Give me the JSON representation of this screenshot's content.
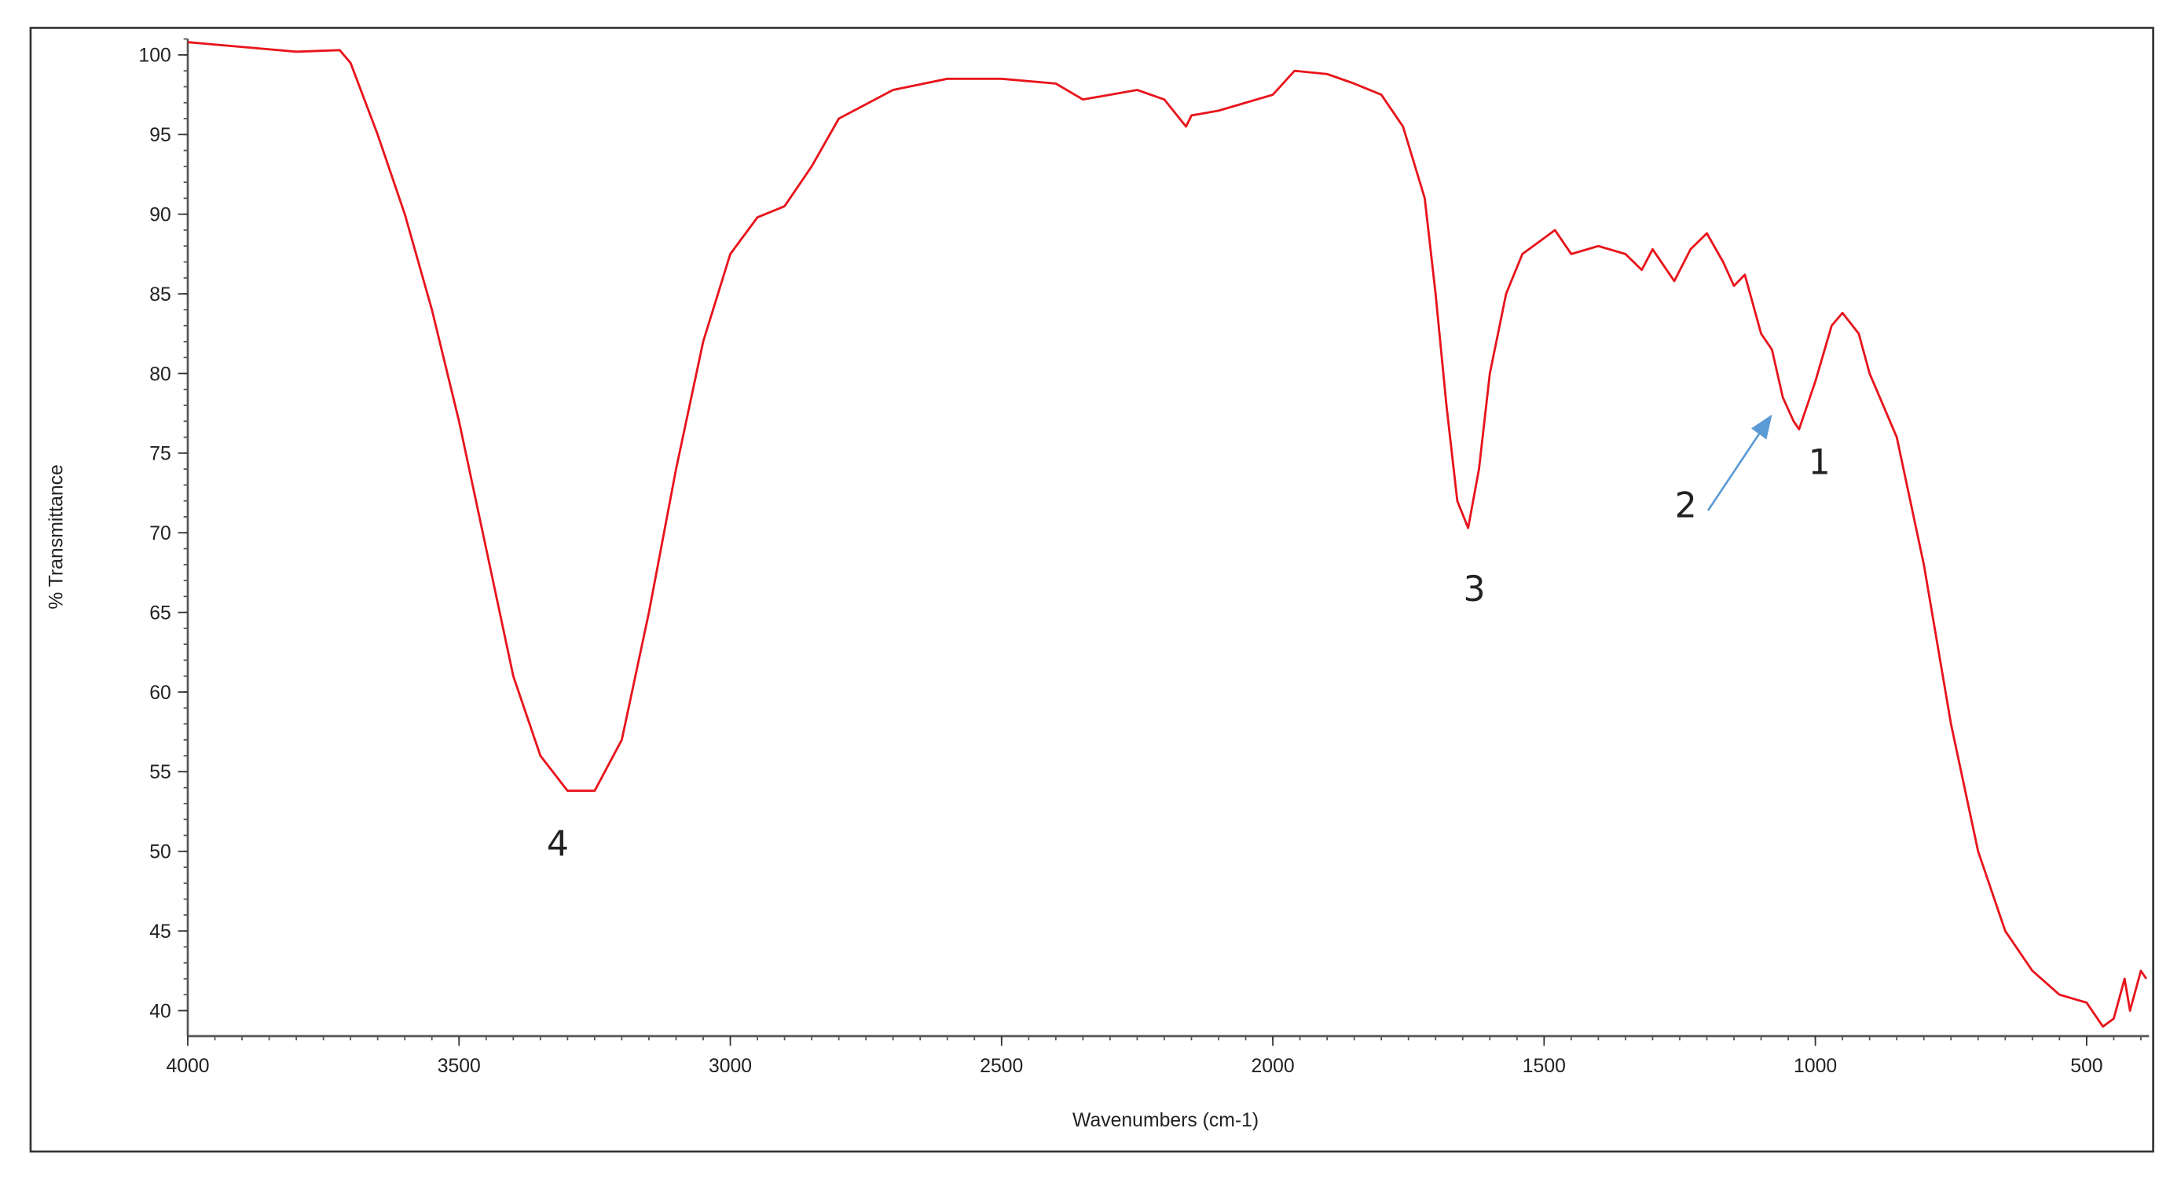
{
  "chart_data": {
    "type": "line",
    "x_label": "Wavenumbers (cm-1)",
    "y_label": "% Transmittance",
    "x": [
      4000,
      3900,
      3800,
      3720,
      3700,
      3650,
      3600,
      3550,
      3500,
      3450,
      3400,
      3350,
      3300,
      3250,
      3200,
      3150,
      3100,
      3050,
      3000,
      2950,
      2900,
      2850,
      2800,
      2700,
      2600,
      2500,
      2400,
      2350,
      2300,
      2250,
      2200,
      2160,
      2150,
      2100,
      2050,
      2000,
      1960,
      1900,
      1850,
      1800,
      1760,
      1720,
      1700,
      1680,
      1660,
      1640,
      1620,
      1600,
      1570,
      1540,
      1500,
      1480,
      1450,
      1400,
      1350,
      1320,
      1300,
      1260,
      1230,
      1200,
      1170,
      1150,
      1130,
      1100,
      1080,
      1060,
      1040,
      1030,
      1000,
      970,
      950,
      920,
      900,
      850,
      800,
      750,
      700,
      650,
      600,
      550,
      500,
      470,
      450,
      430,
      420,
      400,
      390
    ],
    "values": [
      100.8,
      100.5,
      100.2,
      100.3,
      99.5,
      95,
      90,
      84,
      77,
      69,
      61,
      56,
      53.8,
      53.8,
      57,
      65,
      74,
      82,
      87.5,
      89.8,
      90.5,
      93,
      96,
      97.8,
      98.5,
      98.5,
      98.2,
      97.2,
      97.5,
      97.8,
      97.2,
      95.5,
      96.2,
      96.5,
      97,
      97.5,
      99,
      98.8,
      98.2,
      97.5,
      95.5,
      91,
      85,
      78,
      72,
      70.3,
      74,
      80,
      85,
      87.5,
      88.5,
      89,
      87.5,
      88,
      87.5,
      86.5,
      87.8,
      85.8,
      87.8,
      88.8,
      87,
      85.5,
      86.2,
      82.5,
      81.5,
      78.5,
      77,
      76.5,
      79.5,
      83,
      83.8,
      82.5,
      80,
      76,
      68,
      58,
      50,
      45,
      42.5,
      41,
      40.5,
      39,
      39.5,
      42,
      40,
      42.5,
      42
    ],
    "color": "#e8141c",
    "xlim": [
      4000,
      385
    ],
    "ylim": [
      38.4,
      101
    ],
    "xticks": [
      4000,
      3500,
      3000,
      2500,
      2000,
      1500,
      1000,
      500
    ],
    "yticks": [
      40,
      45,
      50,
      55,
      60,
      65,
      70,
      75,
      80,
      85,
      90,
      95,
      100
    ],
    "annotations": [
      "1",
      "2",
      "3",
      "4"
    ]
  }
}
